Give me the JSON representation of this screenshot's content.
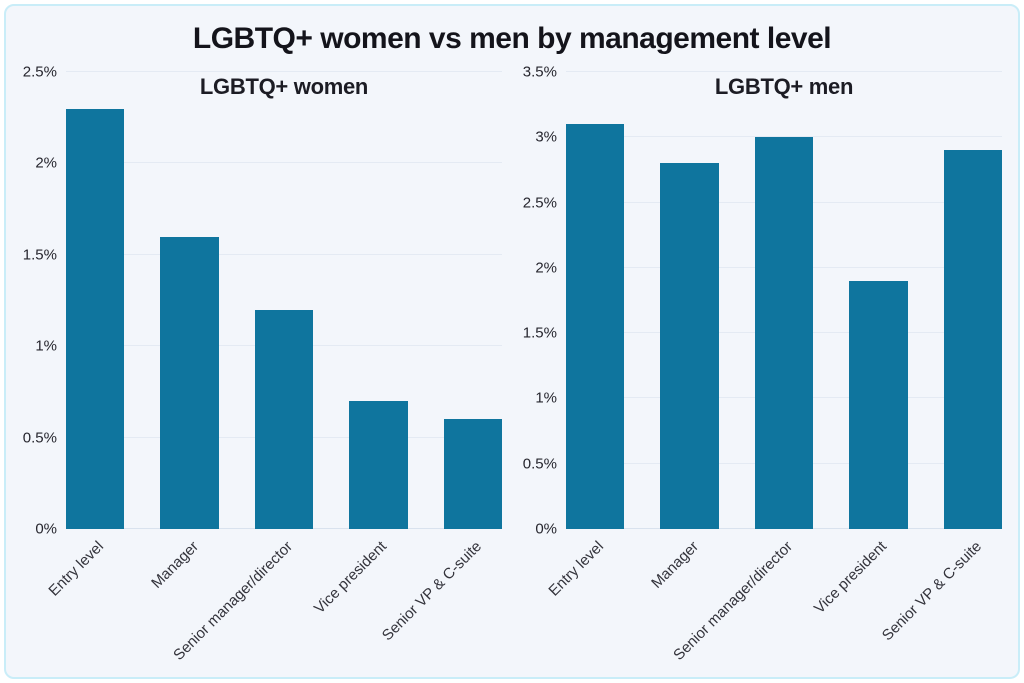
{
  "title": "LGBTQ+ women vs men by management level",
  "colors": {
    "bar": "#0f759e",
    "card_background": "#f3f6fb",
    "card_border": "#c9edf8",
    "gridline": "#e4eaf3",
    "title_text": "#14141b",
    "tick_text": "#26262e"
  },
  "chart_data": [
    {
      "type": "bar",
      "title": "LGBTQ+ women",
      "categories": [
        "Entry level",
        "Manager",
        "Senior manager/director",
        "Vice president",
        "Senior VP & C-suite"
      ],
      "values": [
        2.3,
        1.6,
        1.2,
        0.7,
        0.6
      ],
      "unit": "%",
      "xlabel": "",
      "ylabel": "",
      "ylim": [
        0,
        2.5
      ],
      "yticks": [
        {
          "label": "0%",
          "value": 0
        },
        {
          "label": "0.5%",
          "value": 0.5
        },
        {
          "label": "1%",
          "value": 1
        },
        {
          "label": "1.5%",
          "value": 1.5
        },
        {
          "label": "2%",
          "value": 2
        },
        {
          "label": "2.5%",
          "value": 2.5
        }
      ],
      "grid": true,
      "legend": "none",
      "bar_color": "#0f759e"
    },
    {
      "type": "bar",
      "title": "LGBTQ+ men",
      "categories": [
        "Entry level",
        "Manager",
        "Senior manager/director",
        "Vice president",
        "Senior VP & C-suite"
      ],
      "values": [
        3.1,
        2.8,
        3.0,
        1.9,
        2.9
      ],
      "unit": "%",
      "xlabel": "",
      "ylabel": "",
      "ylim": [
        0,
        3.5
      ],
      "yticks": [
        {
          "label": "0%",
          "value": 0
        },
        {
          "label": "0.5%",
          "value": 0.5
        },
        {
          "label": "1%",
          "value": 1
        },
        {
          "label": "1.5%",
          "value": 1.5
        },
        {
          "label": "2%",
          "value": 2
        },
        {
          "label": "2.5%",
          "value": 2.5
        },
        {
          "label": "3%",
          "value": 3
        },
        {
          "label": "3.5%",
          "value": 3.5
        }
      ],
      "grid": true,
      "legend": "none",
      "bar_color": "#0f759e"
    }
  ]
}
